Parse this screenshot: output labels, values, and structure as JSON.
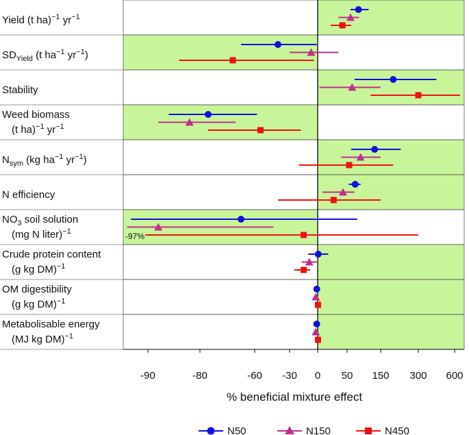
{
  "chart_data": {
    "type": "forest",
    "title": "",
    "xlabel": "% beneficial mixture effect",
    "x_ticks": [
      "-90",
      "-80",
      "-60",
      "-30",
      "0",
      "50",
      "150",
      "300",
      "600"
    ],
    "annotation": "-97%",
    "series": [
      {
        "name": "N50",
        "color": "#1010e0",
        "marker": "circle"
      },
      {
        "name": "N150",
        "color": "#c0308c",
        "marker": "triangle"
      },
      {
        "name": "N450",
        "color": "#ee1111",
        "marker": "square"
      }
    ],
    "rows": [
      {
        "line1_pre": "Yield (t ha",
        "line1_sup1": "−1",
        "line1_mid": " yr",
        "line1_sup2": "−1",
        "line1_post": ")",
        "highlight": "right",
        "points": [
          {
            "value": 84,
            "low": 60,
            "high": 114
          },
          {
            "value": 60,
            "low": 35,
            "high": 85
          },
          {
            "value": 42,
            "low": 22,
            "high": 62
          }
        ]
      },
      {
        "line1_pre": "SD",
        "line1_sub": "Yield",
        "line1_post": " (t ha",
        "line1_sup1": "−1",
        "line1_mid": " yr",
        "line1_sup2": "−1",
        "line1_end": ")",
        "highlight": "left",
        "points": [
          {
            "value": -40,
            "low": -65,
            "high": -1
          },
          {
            "value": -7,
            "low": -30,
            "high": 35
          },
          {
            "value": -68,
            "low": -84,
            "high": -4
          }
        ]
      },
      {
        "line1_pre": "Stability",
        "highlight": "right",
        "points": [
          {
            "value": 200,
            "low": 72,
            "high": 450
          },
          {
            "value": 65,
            "low": 3,
            "high": 150
          },
          {
            "value": 300,
            "low": 120,
            "high": 650
          }
        ]
      },
      {
        "line1_pre": "Weed biomass",
        "line2_pre": "(t ha",
        "line2_sup1": "−1",
        "line2_mid": " yr",
        "line2_sup2": "−1",
        "line2_post": ")",
        "highlight": "left",
        "points": [
          {
            "value": -77,
            "low": -86,
            "high": -58
          },
          {
            "value": -82,
            "low": -88,
            "high": -67
          },
          {
            "value": -55,
            "low": -77,
            "high": -18
          }
        ]
      },
      {
        "line1_pre": "N",
        "line1_sub": "sym",
        "line1_post": " (kg ha",
        "line1_sup1": "−1",
        "line1_mid": " yr",
        "line1_sup2": "−1",
        "line1_end": ")",
        "highlight": "right",
        "points": [
          {
            "value": 132,
            "low": 62,
            "high": 230
          },
          {
            "value": 90,
            "low": 40,
            "high": 150
          },
          {
            "value": 56,
            "low": -20,
            "high": 200
          }
        ]
      },
      {
        "line1_pre": "N efficiency",
        "highlight": "right",
        "points": [
          {
            "value": 74,
            "low": 55,
            "high": 90
          },
          {
            "value": 43,
            "low": 8,
            "high": 72
          },
          {
            "value": 27,
            "low": -40,
            "high": 150
          }
        ]
      },
      {
        "line1_pre": "NO",
        "line1_sub": "3",
        "line1_post": " soil solution",
        "line2_pre": "(mg N liter",
        "line2_sup1": "−1",
        "line2_post": ")",
        "highlight": "left",
        "points": [
          {
            "value": -65,
            "low": -96.5,
            "high": 80
          },
          {
            "value": -88,
            "low": -98,
            "high": -44
          },
          {
            "value": -15,
            "low": -91,
            "high": 300
          }
        ]
      },
      {
        "line1_pre": "Crude protein content",
        "line2_pre": "(g kg",
        "line2_sup1": "−1",
        "line2_post": " DM)",
        "highlight": "right",
        "points": [
          {
            "value": 1,
            "low": -10,
            "high": 18
          },
          {
            "value": -9,
            "low": -17,
            "high": -1
          },
          {
            "value": -15,
            "low": -25,
            "high": -8
          }
        ]
      },
      {
        "line1_pre": "OM digestibility",
        "line2_pre": "(g kg",
        "line2_sup1": "−1",
        "line2_post": " DM)",
        "highlight": "right",
        "points": [
          {
            "value": -1,
            "low": -2,
            "high": 0
          },
          {
            "value": -2,
            "low": -3,
            "high": -1
          },
          {
            "value": 0.5,
            "low": -0.5,
            "high": 1.5
          }
        ]
      },
      {
        "line1_pre": "Metabolisable energy",
        "line2_pre": "(MJ kg",
        "line2_sup1": "−1",
        "line2_post": " DM)",
        "highlight": "right",
        "points": [
          {
            "value": -1,
            "low": -2,
            "high": 0
          },
          {
            "value": -2,
            "low": -3,
            "high": -1
          },
          {
            "value": 0.5,
            "low": -0.5,
            "high": 1.5
          }
        ]
      }
    ]
  }
}
